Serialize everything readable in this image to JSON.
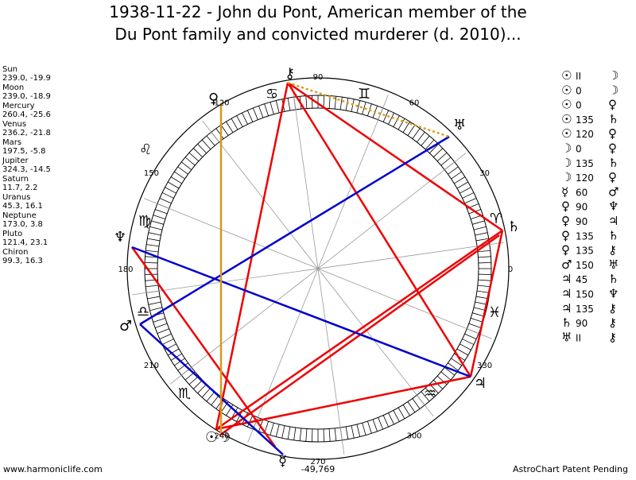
{
  "header": {
    "title_lines": [
      "1938-11-22 - John du Pont, American member of the",
      "Du Pont family and convicted murderer (d. 2010)..."
    ]
  },
  "positions": [
    {
      "name": "Sun",
      "value": "239.0, -19.9"
    },
    {
      "name": "Moon",
      "value": "239.0, -18.9"
    },
    {
      "name": "Mercury",
      "value": "260.4, -25.6"
    },
    {
      "name": "Venus",
      "value": "236.2, -21.8"
    },
    {
      "name": "Mars",
      "value": "197.5, -5.8"
    },
    {
      "name": "Jupiter",
      "value": "324.3, -14.5"
    },
    {
      "name": "Saturn",
      "value": "11.7, 2.2"
    },
    {
      "name": "Uranus",
      "value": "45.3, 16.1"
    },
    {
      "name": "Neptune",
      "value": "173.0, 3.8"
    },
    {
      "name": "Pluto",
      "value": "121.4, 23.1"
    },
    {
      "name": "Chiron",
      "value": "99.3, 16.3"
    }
  ],
  "aspects": [
    [
      "☉",
      "II",
      "☽"
    ],
    [
      "☉",
      "0",
      "☽"
    ],
    [
      "☉",
      "0",
      "♀"
    ],
    [
      "☉",
      "135",
      "♄"
    ],
    [
      "☉",
      "120",
      "♀"
    ],
    [
      "☽",
      "0",
      "♀"
    ],
    [
      "☽",
      "135",
      "♄"
    ],
    [
      "☽",
      "120",
      "♀"
    ],
    [
      "☿",
      "60",
      "♂"
    ],
    [
      "♀",
      "90",
      "♆"
    ],
    [
      "♀",
      "90",
      "♃"
    ],
    [
      "♀",
      "135",
      "♄"
    ],
    [
      "♀",
      "135",
      "⚷"
    ],
    [
      "♂",
      "150",
      "♅"
    ],
    [
      "♃",
      "45",
      "♄"
    ],
    [
      "♃",
      "150",
      "♆"
    ],
    [
      "♃",
      "135",
      "⚷"
    ],
    [
      "♄",
      "90",
      "⚷"
    ],
    [
      "♅",
      "II",
      "⚷"
    ]
  ],
  "wheel": {
    "degree_ticks": [
      0,
      30,
      60,
      90,
      120,
      150,
      180,
      210,
      240,
      270,
      300,
      330
    ],
    "planet_glyphs": [
      "⚷",
      "♀",
      "♅",
      "♄",
      "♆",
      "♂",
      "♃",
      "☉☽",
      "☿"
    ],
    "zodiac_glyphs": [
      "♋",
      "♊",
      "♌",
      "♍",
      "♈",
      "♎",
      "♓",
      "♏",
      "♒"
    ]
  },
  "footer": {
    "site": "www.harmoniclife.com",
    "code": "-49,769",
    "note": "AstroChart Patent Pending"
  }
}
